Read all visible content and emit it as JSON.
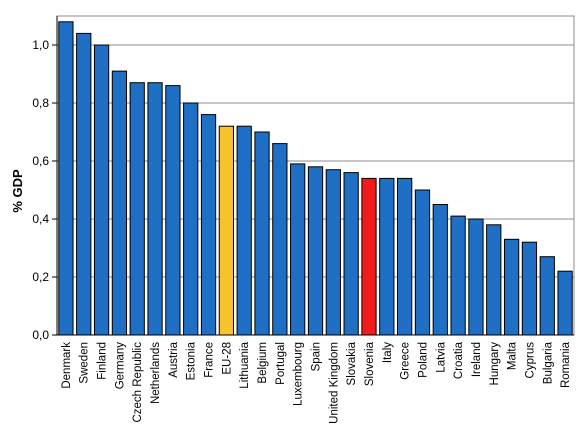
{
  "chart_data": {
    "type": "bar",
    "title": "",
    "xlabel": "",
    "ylabel": "% GDP",
    "ylim": [
      0,
      1.1
    ],
    "yticks": [
      "0,0",
      "0,2",
      "0,4",
      "0,6",
      "0,8",
      "1,0"
    ],
    "grid": true,
    "categories": [
      "Denmark",
      "Sweden",
      "Finland",
      "Germany",
      "Czech Republic",
      "Netherlands",
      "Austria",
      "Estonia",
      "France",
      "EU-28",
      "Lithuania",
      "Belgium",
      "Portugal",
      "Luxembourg",
      "Spain",
      "United Kingdom",
      "Slovakia",
      "Slovenia",
      "Italy",
      "Greece",
      "Poland",
      "Latvia",
      "Croatia",
      "Ireland",
      "Hungary",
      "Malta",
      "Cyprus",
      "Bulgaria",
      "Romania"
    ],
    "values": [
      1.08,
      1.04,
      1.0,
      0.91,
      0.87,
      0.87,
      0.86,
      0.8,
      0.76,
      0.72,
      0.72,
      0.7,
      0.66,
      0.59,
      0.58,
      0.57,
      0.56,
      0.54,
      0.54,
      0.54,
      0.5,
      0.45,
      0.41,
      0.4,
      0.38,
      0.33,
      0.32,
      0.27,
      0.22
    ],
    "colors": {
      "default": "#1f6fc5",
      "highlight_EU-28": "#f7c22a",
      "highlight_Slovenia": "#f21b1b",
      "gridline": "#8c8c8c",
      "axis": "#000000"
    }
  }
}
